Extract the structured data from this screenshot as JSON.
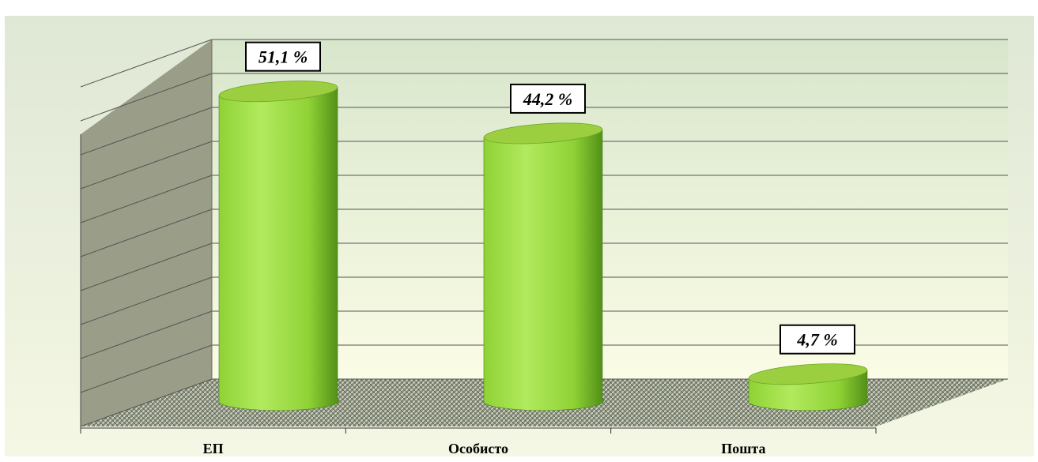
{
  "chart_data": {
    "type": "bar",
    "categories": [
      "ЕП",
      "Особисто",
      "Пошта"
    ],
    "values": [
      51.1,
      44.2,
      4.7
    ],
    "data_labels": [
      "51,1 %",
      "44,2 %",
      "4,7 %"
    ],
    "title": "",
    "xlabel": "",
    "ylabel": "",
    "ylim": [
      0,
      60
    ],
    "grid": true,
    "legend": "none",
    "style": "3d-cylinder"
  },
  "colors": {
    "bar_light": "#b2ea5e",
    "bar_mid": "#8fd235",
    "bar_dark": "#4f8e16",
    "bar_top": "#9ccf3f",
    "back_wall_top": "#d8e6cc",
    "back_wall_bottom": "#fbfce6",
    "side_wall": "#9a9e88",
    "floor": "#7a8070",
    "grid_line": "#555555",
    "page_bg": "#ffffff"
  }
}
